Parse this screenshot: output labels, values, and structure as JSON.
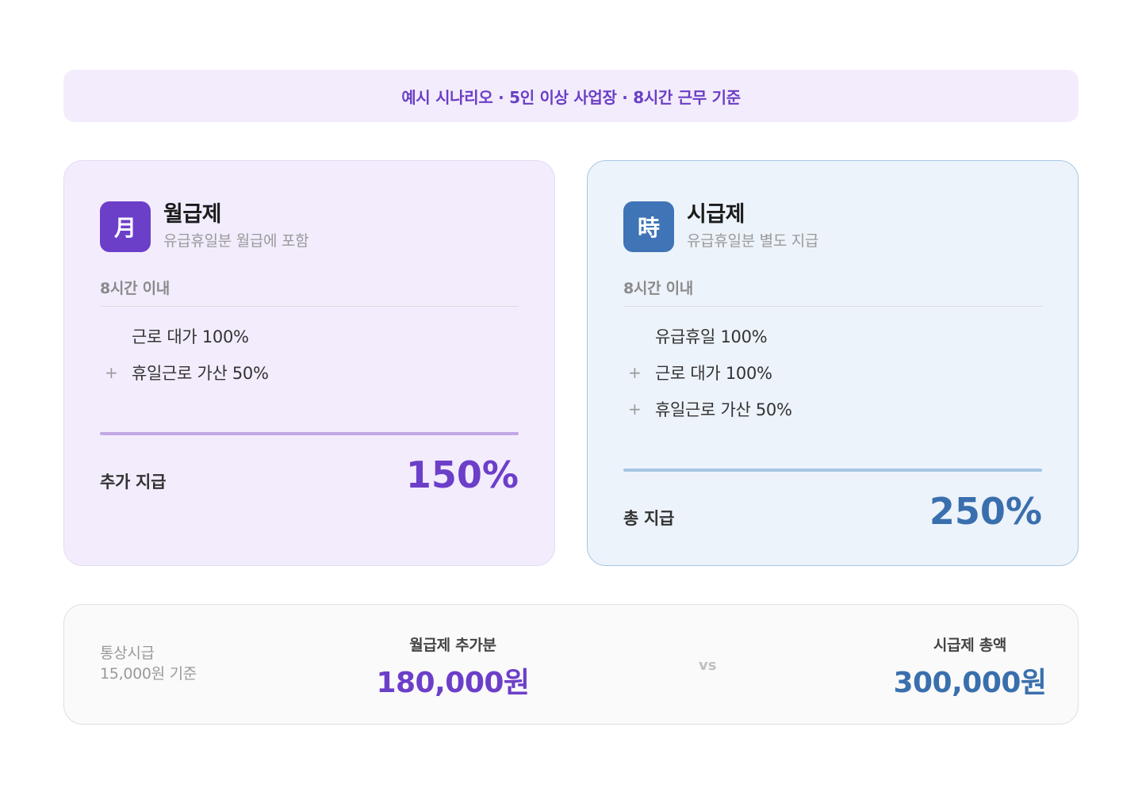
{
  "banner": {
    "text": "예시 시나리오 · 5인 이상 사업장 · 8시간 근무 기준"
  },
  "cards": {
    "monthly": {
      "badge": "月",
      "title": "월급제",
      "subtitle": "유급휴일분 월급에 포함",
      "section_label": "8시간 이내",
      "lines": [
        {
          "prefix": "",
          "text": "근로 대가 100%"
        },
        {
          "prefix": "+",
          "text": "휴일근로 가산 50%"
        }
      ],
      "total_label": "추가 지급",
      "total_value": "150%"
    },
    "hourly": {
      "badge": "時",
      "title": "시급제",
      "subtitle": "유급휴일분 별도 지급",
      "section_label": "8시간 이내",
      "lines": [
        {
          "prefix": "",
          "text": "유급휴일 100%"
        },
        {
          "prefix": "+",
          "text": "근로 대가 100%"
        },
        {
          "prefix": "+",
          "text": "휴일근로 가산 50%"
        }
      ],
      "total_label": "총 지급",
      "total_value": "250%"
    }
  },
  "comparison": {
    "basis_line1": "통상시급",
    "basis_line2": "15,000원 기준",
    "monthly_label": "월급제 추가분",
    "monthly_value": "180,000원",
    "vs": "vs",
    "hourly_label": "시급제 총액",
    "hourly_value": "300,000원"
  },
  "colors": {
    "monthly_accent": "#6c3fc9",
    "hourly_accent": "#3a6fad",
    "monthly_bg": "#f3ecfd",
    "hourly_bg": "#edf3fb"
  }
}
